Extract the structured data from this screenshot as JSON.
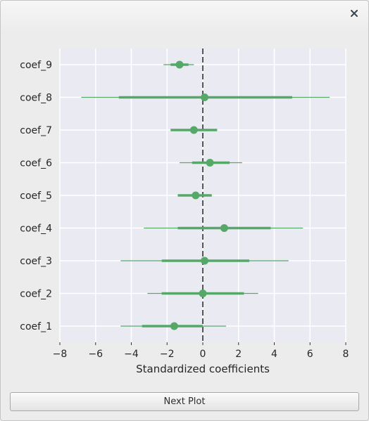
{
  "window": {
    "close_icon": "close-icon"
  },
  "next_button": {
    "label": "Next Plot"
  },
  "colors": {
    "marker": "#55a868",
    "plot_background": "#eaeaf2",
    "grid": "#ffffff",
    "zero_line": "#555555"
  },
  "chart_data": {
    "type": "scatter",
    "title": "",
    "xlabel": "Standardized coefficients",
    "ylabel": "",
    "xlim": [
      -8,
      8
    ],
    "xticks": [
      -8,
      -6,
      -4,
      -2,
      0,
      2,
      4,
      6,
      8
    ],
    "xtick_labels": [
      "−8",
      "−6",
      "−4",
      "−2",
      "0",
      "2",
      "4",
      "6",
      "8"
    ],
    "grid": true,
    "reference_line": {
      "x": 0,
      "style": "dashed"
    },
    "series": [
      {
        "label": "coef_9",
        "estimate": -1.3,
        "inner": [
          -1.8,
          -0.8
        ],
        "outer": [
          -2.2,
          -0.5
        ]
      },
      {
        "label": "coef_8",
        "estimate": 0.1,
        "inner": [
          -4.7,
          5.0
        ],
        "outer": [
          -6.8,
          7.1
        ]
      },
      {
        "label": "coef_7",
        "estimate": -0.5,
        "inner": [
          -1.8,
          0.8
        ],
        "outer": [
          -1.8,
          0.8
        ]
      },
      {
        "label": "coef_6",
        "estimate": 0.4,
        "inner": [
          -0.6,
          1.5
        ],
        "outer": [
          -1.3,
          2.2
        ]
      },
      {
        "label": "coef_5",
        "estimate": -0.4,
        "inner": [
          -1.4,
          0.5
        ],
        "outer": [
          -1.4,
          0.5
        ]
      },
      {
        "label": "coef_4",
        "estimate": 1.2,
        "inner": [
          -1.4,
          3.8
        ],
        "outer": [
          -3.3,
          5.6
        ]
      },
      {
        "label": "coef_3",
        "estimate": 0.1,
        "inner": [
          -2.3,
          2.6
        ],
        "outer": [
          -4.6,
          4.8
        ]
      },
      {
        "label": "coef_2",
        "estimate": 0.0,
        "inner": [
          -2.3,
          2.3
        ],
        "outer": [
          -3.1,
          3.1
        ]
      },
      {
        "label": "coef_1",
        "estimate": -1.6,
        "inner": [
          -3.4,
          0.0
        ],
        "outer": [
          -4.6,
          1.3
        ]
      }
    ]
  }
}
